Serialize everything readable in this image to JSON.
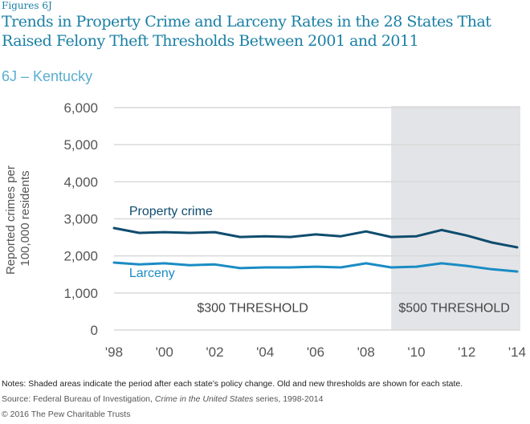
{
  "figure_label": "Figures 6J",
  "title": "Trends in Property Crime and Larceny Rates in the 28 States That Raised Felony Theft Thresholds Between 2001 and 2011",
  "subtitle": "6J – Kentucky",
  "notes": "Notes: Shaded areas indicate the period after each state’s policy change. Old and new thresholds are shown for each state.",
  "source": {
    "prefix": "Source: Federal Bureau of Investigation, ",
    "italic": "Crime in the United States",
    "suffix": " series, 1998-2014"
  },
  "copyright": "© 2016 The Pew Charitable Trusts",
  "colors": {
    "property_crime": "#0f4c6e",
    "larceny": "#1a8cc4",
    "shade": "#e3e4e7",
    "grid": "#d9d9d9",
    "tick_text": "#555555"
  },
  "chart_data": {
    "type": "line",
    "title": "6J – Kentucky",
    "xlabel": "",
    "ylabel": "Reported crimes per 100,000 residents",
    "x": [
      1998,
      1999,
      2000,
      2001,
      2002,
      2003,
      2004,
      2005,
      2006,
      2007,
      2008,
      2009,
      2010,
      2011,
      2012,
      2013,
      2014
    ],
    "xlim": [
      1998,
      2014
    ],
    "ylim": [
      0,
      6000
    ],
    "yticks": [
      0,
      1000,
      2000,
      3000,
      4000,
      5000,
      6000
    ],
    "ytick_labels": [
      "0",
      "1,000",
      "2,000",
      "3,000",
      "4,000",
      "5,000",
      "6,000"
    ],
    "xticks": [
      1998,
      2000,
      2002,
      2004,
      2006,
      2008,
      2010,
      2012,
      2014
    ],
    "xtick_labels": [
      "'98",
      "'00",
      "'02",
      "'04",
      "'06",
      "'08",
      "'10",
      "'12",
      "'14"
    ],
    "grid": true,
    "series": [
      {
        "name": "Property crime",
        "values": [
          2750,
          2620,
          2640,
          2620,
          2640,
          2510,
          2530,
          2510,
          2580,
          2530,
          2660,
          2510,
          2530,
          2700,
          2550,
          2360,
          2230
        ]
      },
      {
        "name": "Larceny",
        "values": [
          1820,
          1770,
          1800,
          1750,
          1770,
          1670,
          1690,
          1690,
          1710,
          1690,
          1800,
          1690,
          1710,
          1800,
          1730,
          1640,
          1580
        ]
      }
    ],
    "shaded_region": {
      "start": 2009,
      "end": 2014
    },
    "annotations": [
      {
        "text": "$300 THRESHOLD",
        "x": 2003.5,
        "y": 550
      },
      {
        "text": "$500 THRESHOLD",
        "x": 2011.5,
        "y": 550
      }
    ],
    "series_labels": [
      {
        "text": "Property crime",
        "x": 1998.6,
        "y": 3100
      },
      {
        "text": "Larceny",
        "x": 1998.6,
        "y": 1430
      }
    ]
  }
}
